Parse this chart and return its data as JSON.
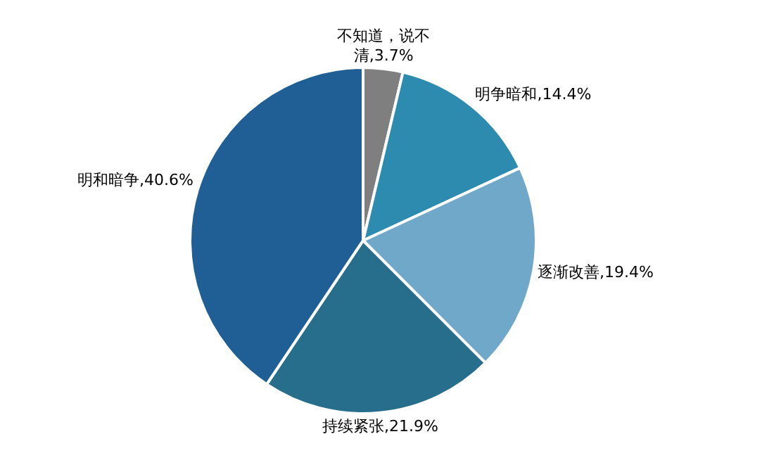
{
  "chart_data": {
    "type": "pie",
    "categories": [
      "不知道，说不清",
      "明争暗和",
      "逐渐改善",
      "持续紧张",
      "明和暗争"
    ],
    "values": [
      3.7,
      14.4,
      19.4,
      21.9,
      40.6
    ],
    "value_labels": [
      "3.7%",
      "14.4%",
      "19.4%",
      "21.9%",
      "40.6%"
    ],
    "colors": [
      "#7f7f7f",
      "#2e8bb0",
      "#6fa8c8",
      "#266e8c",
      "#1f5f96"
    ]
  }
}
